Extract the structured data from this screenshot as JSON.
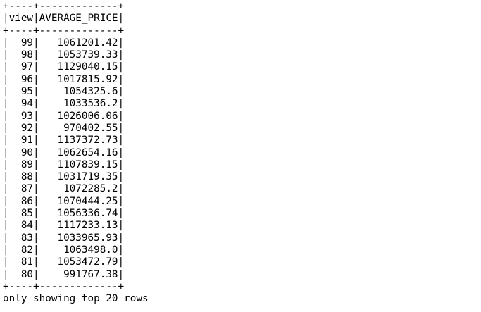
{
  "table": {
    "border_top": "+----+-------------+",
    "header": "|view|AVERAGE_PRICE|",
    "border_mid": "+----+-------------+",
    "columns": [
      "view",
      "AVERAGE_PRICE"
    ],
    "rows": [
      {
        "view": 99,
        "average_price": "1061201.42",
        "text": "|  99|   1061201.42|"
      },
      {
        "view": 98,
        "average_price": "1053739.33",
        "text": "|  98|   1053739.33|"
      },
      {
        "view": 97,
        "average_price": "1129040.15",
        "text": "|  97|   1129040.15|"
      },
      {
        "view": 96,
        "average_price": "1017815.92",
        "text": "|  96|   1017815.92|"
      },
      {
        "view": 95,
        "average_price": "1054325.6",
        "text": "|  95|    1054325.6|"
      },
      {
        "view": 94,
        "average_price": "1033536.2",
        "text": "|  94|    1033536.2|"
      },
      {
        "view": 93,
        "average_price": "1026006.06",
        "text": "|  93|   1026006.06|"
      },
      {
        "view": 92,
        "average_price": "970402.55",
        "text": "|  92|    970402.55|"
      },
      {
        "view": 91,
        "average_price": "1137372.73",
        "text": "|  91|   1137372.73|"
      },
      {
        "view": 90,
        "average_price": "1062654.16",
        "text": "|  90|   1062654.16|"
      },
      {
        "view": 89,
        "average_price": "1107839.15",
        "text": "|  89|   1107839.15|"
      },
      {
        "view": 88,
        "average_price": "1031719.35",
        "text": "|  88|   1031719.35|"
      },
      {
        "view": 87,
        "average_price": "1072285.2",
        "text": "|  87|    1072285.2|"
      },
      {
        "view": 86,
        "average_price": "1070444.25",
        "text": "|  86|   1070444.25|"
      },
      {
        "view": 85,
        "average_price": "1056336.74",
        "text": "|  85|   1056336.74|"
      },
      {
        "view": 84,
        "average_price": "1117233.13",
        "text": "|  84|   1117233.13|"
      },
      {
        "view": 83,
        "average_price": "1033965.93",
        "text": "|  83|   1033965.93|"
      },
      {
        "view": 82,
        "average_price": "1063498.0",
        "text": "|  82|    1063498.0|"
      },
      {
        "view": 81,
        "average_price": "1053472.79",
        "text": "|  81|   1053472.79|"
      },
      {
        "view": 80,
        "average_price": "991767.38",
        "text": "|  80|    991767.38|"
      }
    ],
    "border_bottom": "+----+-------------+"
  },
  "footer": {
    "note": "only showing top 20 rows"
  }
}
